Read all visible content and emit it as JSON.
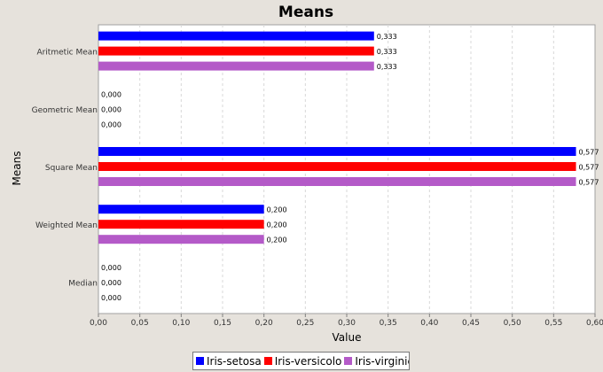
{
  "chart_data": {
    "type": "bar",
    "orientation": "horizontal",
    "title": "Means",
    "xlabel": "Value",
    "ylabel": "Means",
    "categories": [
      "Aritmetic Mean",
      "Geometric Mean",
      "Square Mean",
      "Weighted Mean",
      "Median"
    ],
    "series": [
      {
        "name": "Iris-setosa",
        "color": "#0000ff",
        "values": [
          0.333,
          0.0,
          0.577,
          0.2,
          0.0
        ],
        "labels": [
          "0,333",
          "0,000",
          "0,577",
          "0,200",
          "0,000"
        ]
      },
      {
        "name": "Iris-versicolor",
        "color": "#ff0000",
        "values": [
          0.333,
          0.0,
          0.577,
          0.2,
          0.0
        ],
        "labels": [
          "0,333",
          "0,000",
          "0,577",
          "0,200",
          "0,000"
        ]
      },
      {
        "name": "Iris-virginica",
        "color": "#b45ac8",
        "values": [
          0.333,
          0.0,
          0.577,
          0.2,
          0.0
        ],
        "labels": [
          "0,333",
          "0,000",
          "0,577",
          "0,200",
          "0,000"
        ]
      }
    ],
    "xlim": [
      0,
      0.6
    ],
    "xticks": [
      0,
      0.05,
      0.1,
      0.15,
      0.2,
      0.25,
      0.3,
      0.35,
      0.4,
      0.45,
      0.5,
      0.55,
      0.6
    ],
    "xtick_labels": [
      "0,00",
      "0,05",
      "0,10",
      "0,15",
      "0,20",
      "0,25",
      "0,30",
      "0,35",
      "0,40",
      "0,45",
      "0,50",
      "0,55",
      "0,60"
    ],
    "grid": true,
    "legend_position": "bottom"
  },
  "legend": {
    "items": [
      {
        "label": "Iris-setosa",
        "color": "#0000ff"
      },
      {
        "label": "Iris-versicolo",
        "color": "#ff0000"
      },
      {
        "label": "Iris-virginica",
        "color": "#b45ac8"
      }
    ]
  }
}
